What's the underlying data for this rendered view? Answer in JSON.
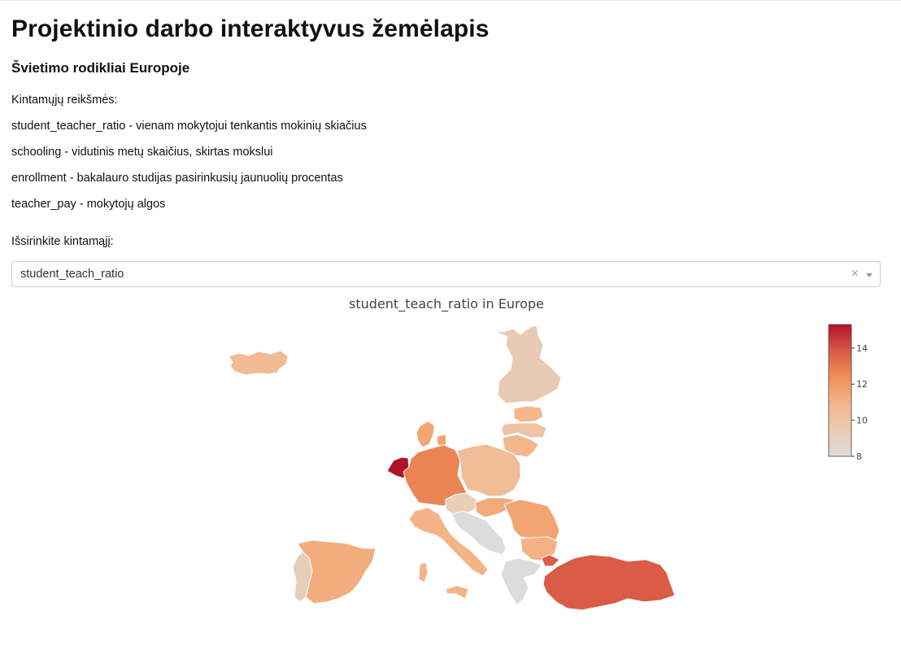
{
  "page": {
    "title": "Projektinio darbo interaktyvus žemėlapis",
    "subtitle": "Švietimo rodikliai Europoje",
    "variables_heading": "Kintamųjų reikšmės:",
    "definitions": [
      "student_teacher_ratio - vienam mokytojui tenkantis mokinių skiačius",
      "schooling - vidutinis metų skaičius, skirtas mokslui",
      "enrollment - bakalauro studijas pasirinkusių jaunuolių procentas",
      "teacher_pay - mokytojų algos"
    ],
    "select_label": "Išsirinkite kintamąjį:"
  },
  "dropdown": {
    "selected": "student_teach_ratio",
    "clear_glyph": "×",
    "icons": [
      "clear-icon",
      "chevron-down-icon"
    ]
  },
  "map": {
    "title": "student_teach_ratio in Europe",
    "colorscale": [
      "#dcdcdc",
      "#e9cbb5",
      "#f4b68a",
      "#ef9058",
      "#d95a45",
      "#b2112a"
    ],
    "nodata_color": "#dcdcdc",
    "colorbar": {
      "range": [
        8,
        15.3
      ],
      "ticks": [
        "8",
        "10",
        "12",
        "14"
      ]
    },
    "countries": [
      {
        "name": "Iceland",
        "value": 10.6
      },
      {
        "name": "Finland",
        "value": 9.5
      },
      {
        "name": "Estonia",
        "value": 10.9
      },
      {
        "name": "Latvia",
        "value": 10.1
      },
      {
        "name": "Lithuania",
        "value": 10.9
      },
      {
        "name": "Denmark",
        "value": 11.6
      },
      {
        "name": "Netherlands",
        "value": 15.3
      },
      {
        "name": "Germany",
        "value": 12.7
      },
      {
        "name": "Poland",
        "value": 10.4
      },
      {
        "name": "Czechia",
        "value": 9.3
      },
      {
        "name": "Slovakia",
        "value": 11.4
      },
      {
        "name": "Romania",
        "value": 11.6
      },
      {
        "name": "Bulgaria",
        "value": 11.1
      },
      {
        "name": "Spain",
        "value": 11.3
      },
      {
        "name": "Portugal",
        "value": 9.3
      },
      {
        "name": "Italy",
        "value": 11.0
      },
      {
        "name": "Turkey",
        "value": 13.8
      },
      {
        "name": "Balkans",
        "value": null
      },
      {
        "name": "Greece",
        "value": null
      }
    ]
  }
}
